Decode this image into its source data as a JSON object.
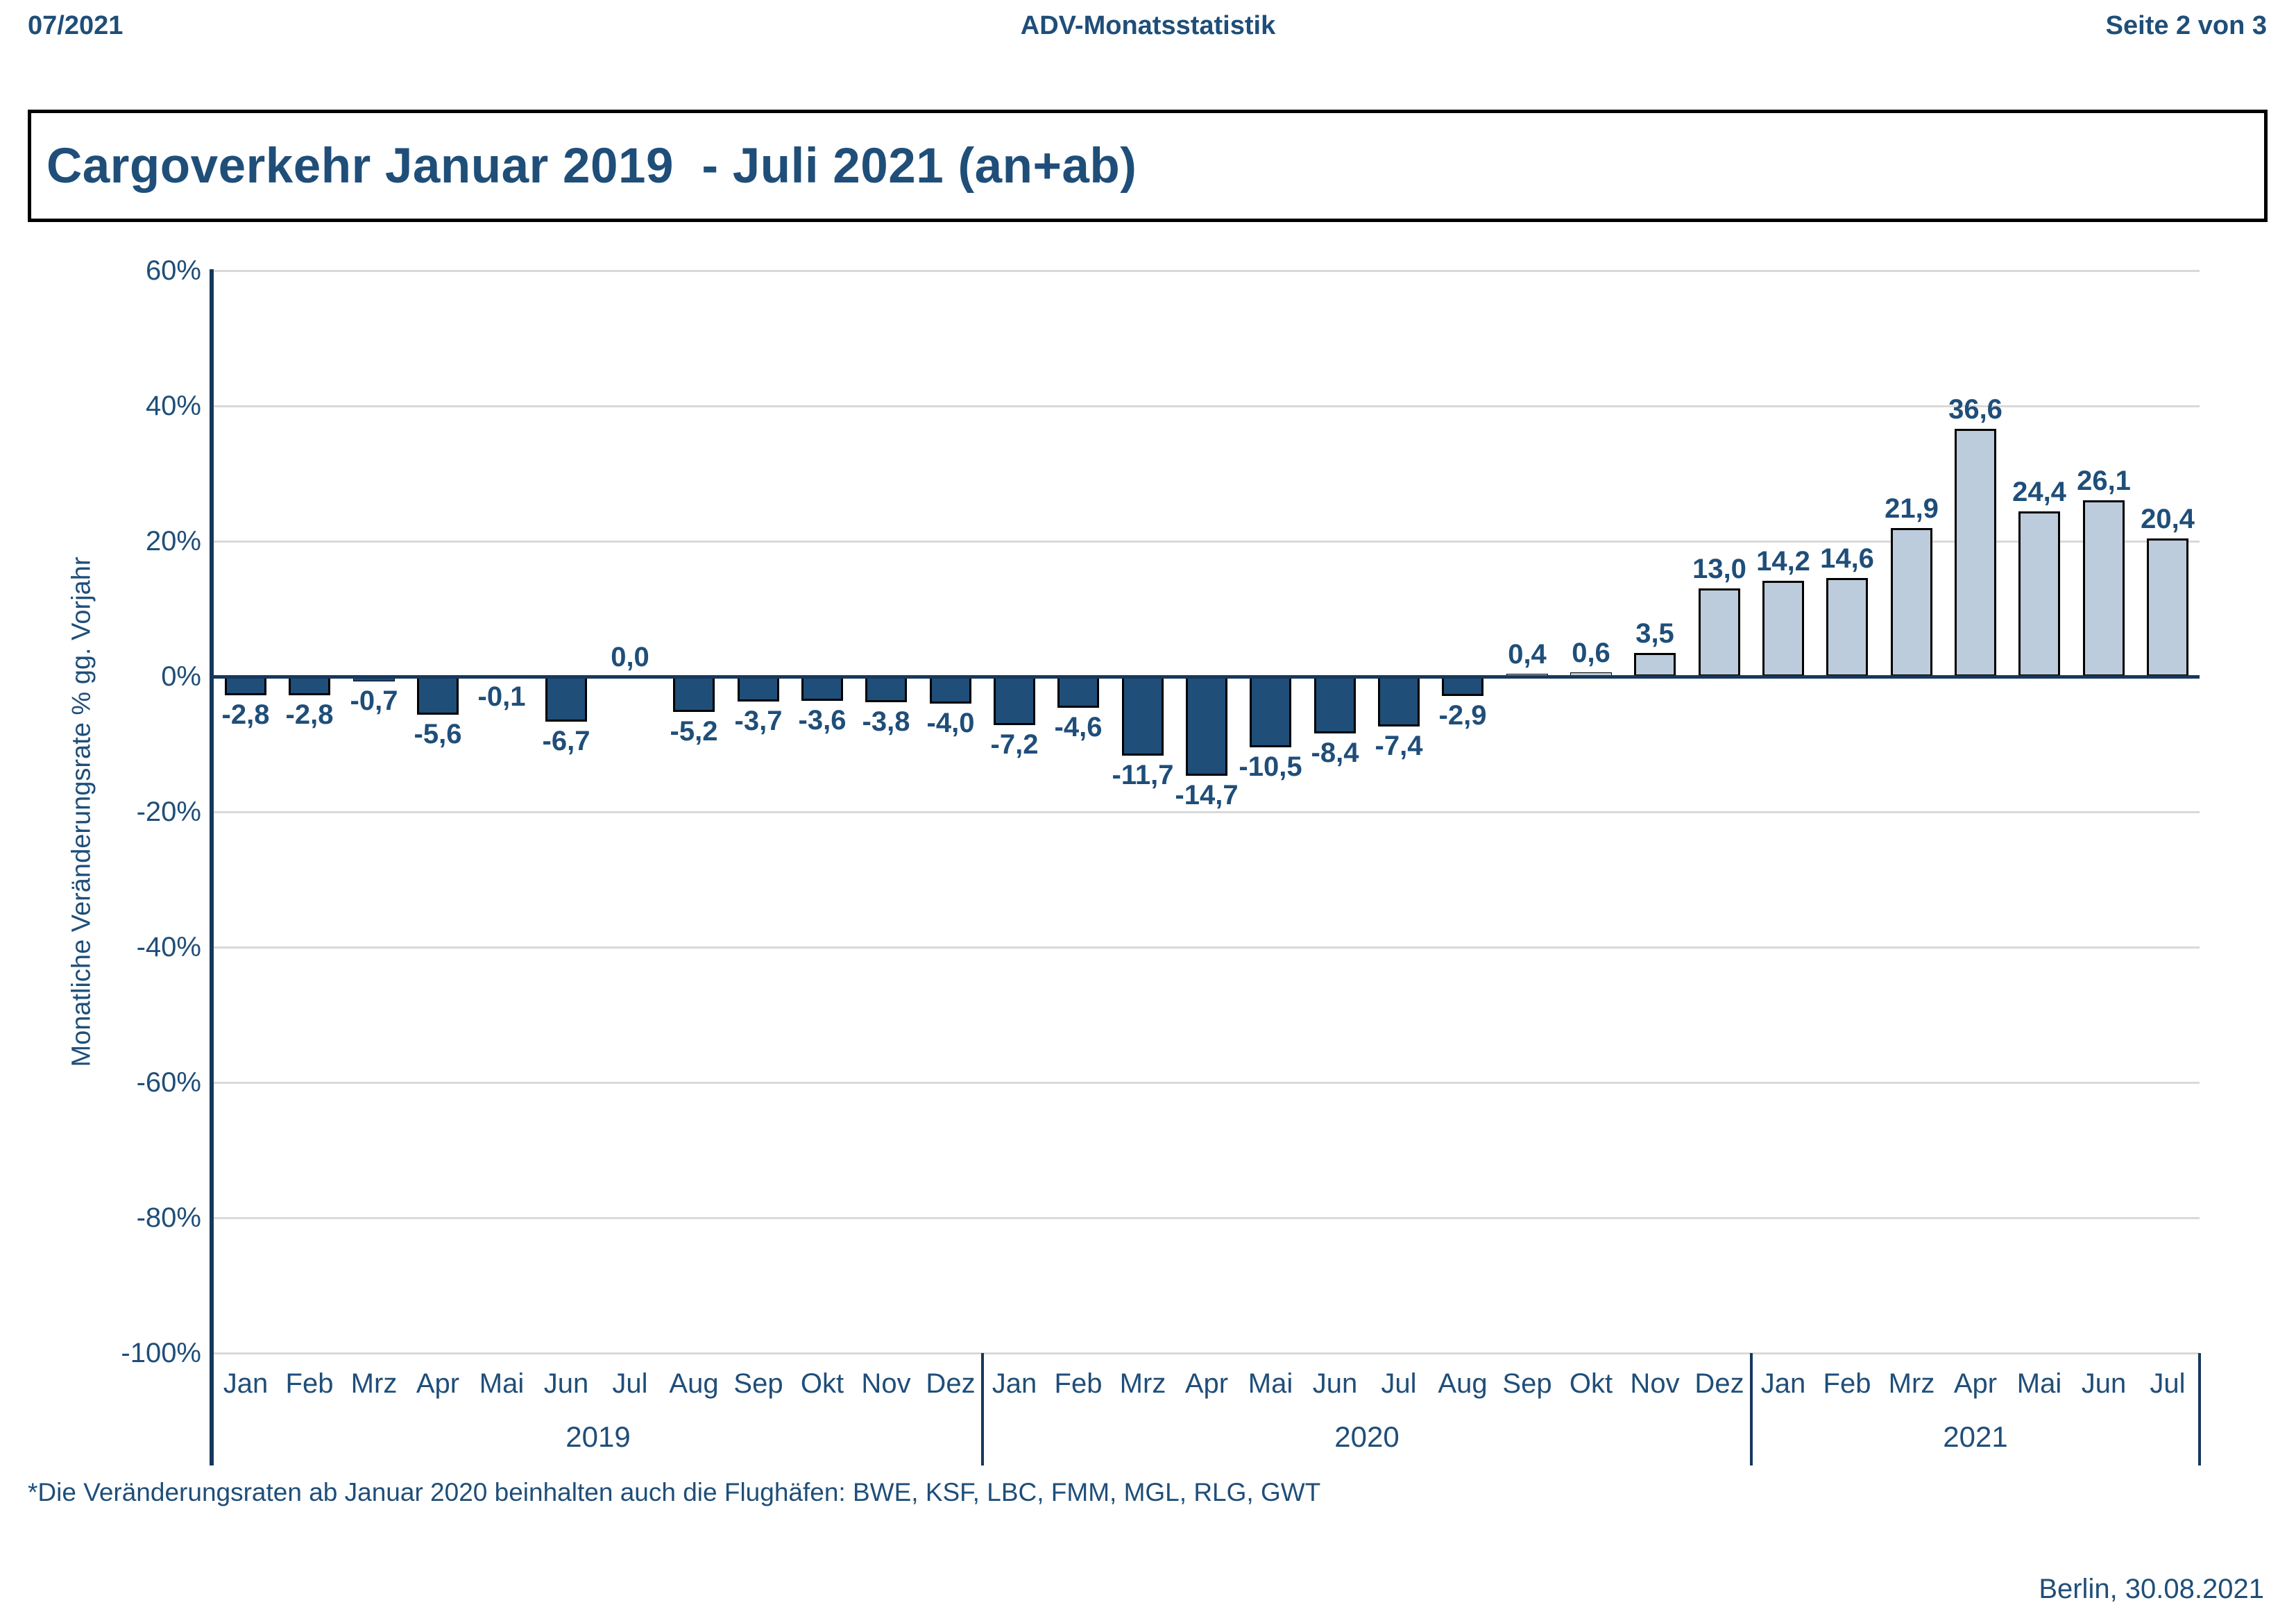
{
  "page": {
    "header": {
      "left": "07/2021",
      "center": "ADV-Monatsstatistik",
      "right": "Seite 2 von 3"
    },
    "title": "Cargoverkehr Januar 2019  - Juli 2021 (an+ab)",
    "footnote": "*Die Veränderungsraten ab Januar 2020 beinhalten auch die Flughäfen: BWE, KSF, LBC, FMM, MGL, RLG, GWT",
    "date_line": "Berlin, 30.08.2021"
  },
  "colors": {
    "text_navy": "#1F4E79",
    "axis_line": "#17375E",
    "gridline": "#D9D9D9",
    "bar_negative": "#1F4E79",
    "bar_positive": "#BCCCDC",
    "bar_border": "#000000",
    "background": "#FFFFFF"
  },
  "chart_data": {
    "type": "bar",
    "title": "Cargoverkehr Januar 2019  - Juli 2021 (an+ab)",
    "xlabel": "",
    "ylabel": "Monatliche Veränderungsrate % gg. Vorjahr",
    "ylim": [
      -100,
      60
    ],
    "ytick_step": 20,
    "ytick_labels": [
      "60%",
      "40%",
      "20%",
      "0%",
      "-20%",
      "-40%",
      "-60%",
      "-80%",
      "-100%"
    ],
    "grid": true,
    "legend_position": "none",
    "value_labels_shown": true,
    "bar_color_rule": "negative values dark blue, positive values light blue-gray",
    "groups": [
      {
        "year": "2019",
        "months": [
          "Jan",
          "Feb",
          "Mrz",
          "Apr",
          "Mai",
          "Jun",
          "Jul",
          "Aug",
          "Sep",
          "Okt",
          "Nov",
          "Dez"
        ],
        "values": [
          -2.8,
          -2.8,
          -0.7,
          -5.6,
          -0.1,
          -6.7,
          0.0,
          -5.2,
          -3.7,
          -3.6,
          -3.8,
          -4.0
        ],
        "value_labels": [
          "-2,8",
          "-2,8",
          "-0,7",
          "-5,6",
          "-0,1",
          "-6,7",
          "0,0",
          "-5,2",
          "-3,7",
          "-3,6",
          "-3,8",
          "-4,0"
        ]
      },
      {
        "year": "2020",
        "months": [
          "Jan",
          "Feb",
          "Mrz",
          "Apr",
          "Mai",
          "Jun",
          "Jul",
          "Aug",
          "Sep",
          "Okt",
          "Nov",
          "Dez"
        ],
        "values": [
          -7.2,
          -4.6,
          -11.7,
          -14.7,
          -10.5,
          -8.4,
          -7.4,
          -2.9,
          0.4,
          0.6,
          3.5,
          13.0
        ],
        "value_labels": [
          "-7,2",
          "-4,6",
          "-11,7",
          "-14,7",
          "-10,5",
          "-8,4",
          "-7,4",
          "-2,9",
          "0,4",
          "0,6",
          "3,5",
          "13,0"
        ]
      },
      {
        "year": "2021",
        "months": [
          "Jan",
          "Feb",
          "Mrz",
          "Apr",
          "Mai",
          "Jun",
          "Jul"
        ],
        "values": [
          14.2,
          14.6,
          21.9,
          36.6,
          24.4,
          26.1,
          20.4
        ],
        "value_labels": [
          "14,2",
          "14,6",
          "21,9",
          "36,6",
          "24,4",
          "26,1",
          "20,4"
        ]
      }
    ]
  }
}
